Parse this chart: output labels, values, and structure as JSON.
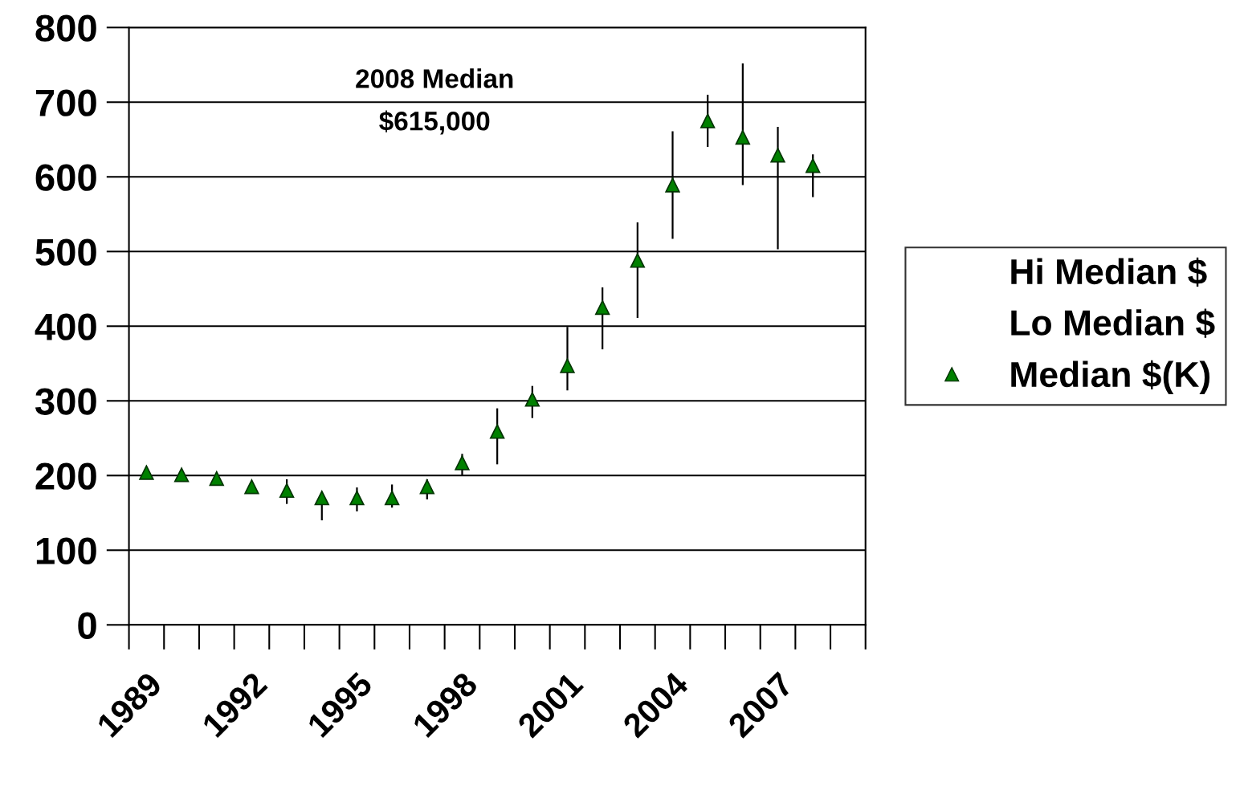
{
  "chart_data": {
    "type": "scatter",
    "categories": [
      "1989",
      null,
      null,
      "1992",
      null,
      null,
      "1995",
      null,
      null,
      "1998",
      null,
      null,
      "2001",
      null,
      null,
      "2004",
      null,
      null,
      "2007",
      null,
      null
    ],
    "series": [
      {
        "name": "Hi Median $",
        "marker": "none",
        "values": [
          null,
          null,
          null,
          null,
          null,
          null,
          null,
          null,
          null,
          null,
          null,
          null,
          null,
          null,
          null,
          null,
          null,
          null,
          null,
          null,
          null
        ]
      },
      {
        "name": "Lo Median $",
        "marker": "none",
        "values": [
          null,
          null,
          null,
          null,
          null,
          null,
          null,
          null,
          null,
          null,
          null,
          null,
          null,
          null,
          null,
          null,
          null,
          null,
          null,
          null,
          null
        ]
      },
      {
        "name": "Median $(K)",
        "marker": "triangle",
        "color": "#008000",
        "values": [
          204,
          201,
          196,
          185,
          180,
          170,
          170,
          170,
          185,
          217,
          259,
          302,
          347,
          425,
          488,
          589,
          675,
          653,
          629,
          615,
          null
        ],
        "errors": [
          null,
          null,
          null,
          null,
          [
            162,
            195
          ],
          [
            140,
            170
          ],
          [
            152,
            184
          ],
          [
            157,
            188
          ],
          [
            168,
            195
          ],
          [
            200,
            229
          ],
          [
            215,
            290
          ],
          [
            277,
            320
          ],
          [
            314,
            399
          ],
          [
            369,
            452
          ],
          [
            411,
            539
          ],
          [
            517,
            661
          ],
          [
            640,
            710
          ],
          [
            589,
            752
          ],
          [
            503,
            667
          ],
          [
            573,
            630
          ],
          null
        ]
      }
    ],
    "ylim": [
      0,
      800
    ],
    "yticks": [
      0,
      100,
      200,
      300,
      400,
      500,
      600,
      700,
      800
    ],
    "grid": "y",
    "legend": "right",
    "annotations": [
      "2008 Median\n$615,000"
    ]
  }
}
